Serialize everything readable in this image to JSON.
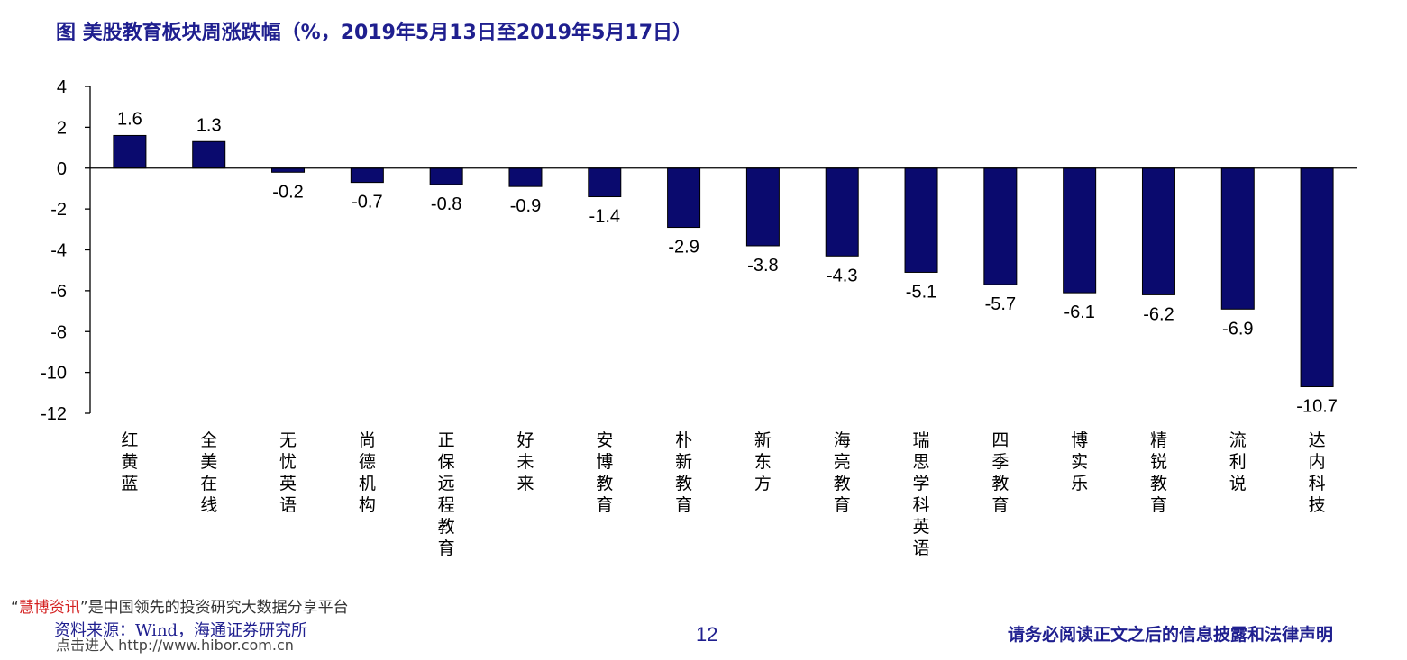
{
  "title": "图  美股教育板块周涨跌幅（%，2019年5月13日至2019年5月17日）",
  "footer": {
    "source": "资料来源：Wind，海通证券研究所",
    "page_number": "12",
    "disclaimer": "请务必阅读正文之后的信息披露和法律声明",
    "watermark_open_quote": "“",
    "watermark_brand": "慧博资讯",
    "watermark_tagline": "”是中国领先的投资研究大数据分享平台",
    "watermark_link": "点击进入 http://www.hibor.com.cn"
  },
  "colors": {
    "bar": "#0a0a6e",
    "title": "#1f1f8f",
    "axis": "#000000"
  },
  "chart_data": {
    "type": "bar",
    "categories": [
      "红黄蓝",
      "全美在线",
      "无忧英语",
      "尚德机构",
      "正保远程教育",
      "好未来",
      "安博教育",
      "朴新教育",
      "新东方",
      "海亮教育",
      "瑞思学科英语",
      "四季教育",
      "博实乐",
      "精锐教育",
      "流利说",
      "达内科技"
    ],
    "values": [
      1.6,
      1.3,
      -0.2,
      -0.7,
      -0.8,
      -0.9,
      -1.4,
      -2.9,
      -3.8,
      -4.3,
      -5.1,
      -5.7,
      -6.1,
      -6.2,
      -6.9,
      -10.7
    ],
    "value_labels": [
      "1.6",
      "1.3",
      "-0.2",
      "-0.7",
      "-0.8",
      "-0.9",
      "-1.4",
      "-2.9",
      "-3.8",
      "-4.3",
      "-5.1",
      "-5.7",
      "-6.1",
      "-6.2",
      "-6.9",
      "-10.7"
    ],
    "yticks": [
      4,
      2,
      0,
      -2,
      -4,
      -6,
      -8,
      -10,
      -12
    ],
    "ylim": [
      -12,
      4
    ],
    "grid": false,
    "legend": "none"
  }
}
